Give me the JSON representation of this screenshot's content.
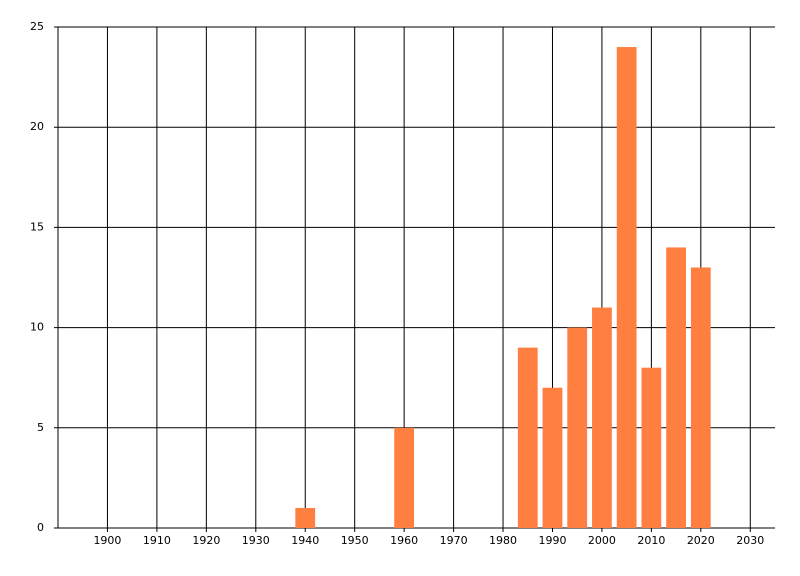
{
  "chart_data": {
    "type": "bar",
    "x": [
      1940,
      1960,
      1985,
      1990,
      1995,
      2000,
      2005,
      2010,
      2015,
      2020
    ],
    "values": [
      1,
      5,
      9,
      7,
      10,
      11,
      24,
      8,
      14,
      13
    ],
    "color": "#ff7f40",
    "xlim": [
      1890,
      2035
    ],
    "xticks": [
      1900,
      1910,
      1920,
      1930,
      1940,
      1950,
      1960,
      1970,
      1980,
      1990,
      2000,
      2010,
      2020,
      2030
    ],
    "ylim": [
      0,
      25
    ],
    "yticks": [
      0,
      5,
      10,
      15,
      20,
      25
    ],
    "grid": true
  }
}
